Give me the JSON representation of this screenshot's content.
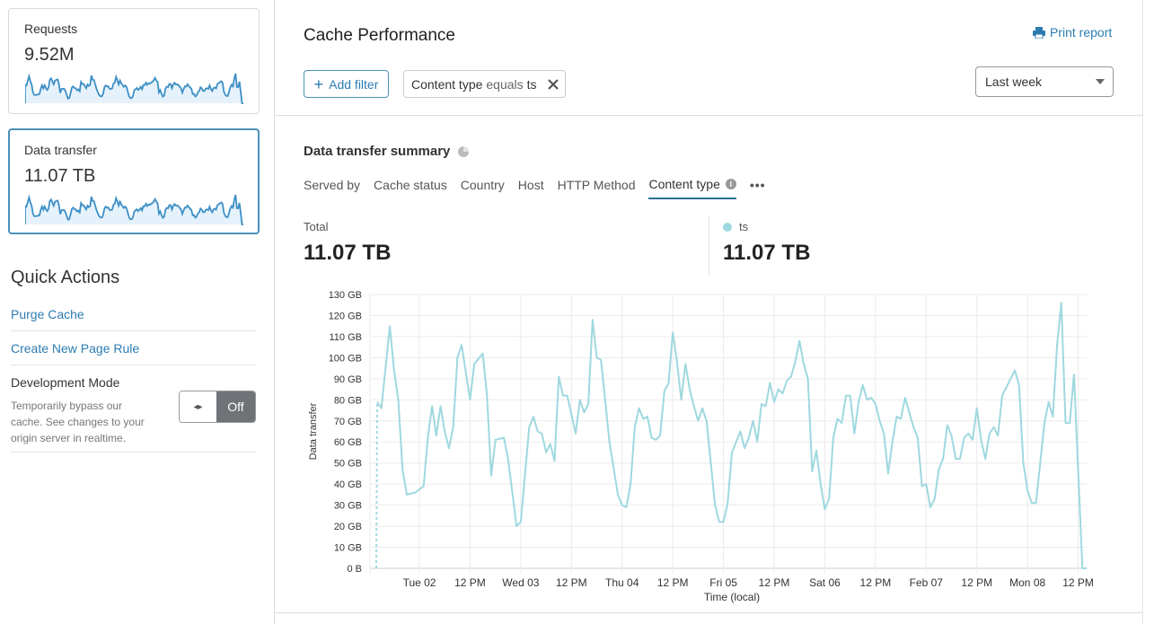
{
  "sidebar": {
    "cards": [
      {
        "label": "Requests",
        "value": "9.52M",
        "selected": false
      },
      {
        "label": "Data transfer",
        "value": "11.07 TB",
        "selected": true
      }
    ],
    "quick_actions": {
      "title": "Quick Actions",
      "links": [
        "Purge Cache",
        "Create New Page Rule"
      ],
      "dev_mode": {
        "title": "Development Mode",
        "description": "Temporarily bypass our cache. See changes to your origin server in realtime.",
        "toggle_icon": "◂▸",
        "state": "Off"
      }
    }
  },
  "header": {
    "title": "Cache Performance",
    "print_label": "Print report",
    "add_filter_label": "Add filter",
    "filter_chip": {
      "field": "Content type",
      "operator": "equals",
      "value": "ts"
    },
    "time_range": "Last week"
  },
  "summary": {
    "title": "Data transfer summary",
    "tabs": [
      "Served by",
      "Cache status",
      "Country",
      "Host",
      "HTTP Method",
      "Content type"
    ],
    "active_tab": "Content type",
    "more_label": "•••",
    "total_label": "Total",
    "total_value": "11.07 TB",
    "series_label": "ts",
    "series_value": "11.07 TB",
    "series_color": "#9fd8df"
  },
  "colors": {
    "accent": "#2c7cb0",
    "sparkline": "#3d8fc6",
    "sparkline_fill": "#e6f2fb"
  },
  "chart_data": {
    "type": "line",
    "ylabel": "Data transfer",
    "xlabel": "Time (local)",
    "ylim": [
      0,
      130
    ],
    "y_ticks": [
      "0 B",
      "10 GB",
      "20 GB",
      "30 GB",
      "40 GB",
      "50 GB",
      "60 GB",
      "70 GB",
      "80 GB",
      "90 GB",
      "100 GB",
      "110 GB",
      "120 GB",
      "130 GB"
    ],
    "x_range": [
      "Feb 01 14:00",
      "Feb 08 14:00"
    ],
    "x_ticks": [
      {
        "t": "Feb 02 00:00",
        "label": "Tue 02"
      },
      {
        "t": "Feb 02 12:00",
        "label": "12 PM"
      },
      {
        "t": "Feb 03 00:00",
        "label": "Wed 03"
      },
      {
        "t": "Feb 03 12:00",
        "label": "12 PM"
      },
      {
        "t": "Feb 04 00:00",
        "label": "Thu 04"
      },
      {
        "t": "Feb 04 12:00",
        "label": "12 PM"
      },
      {
        "t": "Feb 05 00:00",
        "label": "Fri 05"
      },
      {
        "t": "Feb 05 12:00",
        "label": "12 PM"
      },
      {
        "t": "Feb 06 00:00",
        "label": "Sat 06"
      },
      {
        "t": "Feb 06 12:00",
        "label": "12 PM"
      },
      {
        "t": "Feb 07 00:00",
        "label": "Feb 07"
      },
      {
        "t": "Feb 07 12:00",
        "label": "12 PM"
      },
      {
        "t": "Feb 08 00:00",
        "label": "Mon 08"
      },
      {
        "t": "Feb 08 12:00",
        "label": "12 PM"
      }
    ],
    "grid": true,
    "legend": "none",
    "series": [
      {
        "name": "ts",
        "unit": "GB",
        "points": [
          [
            "Feb 01 14:00",
            79
          ],
          [
            "Feb 01 15:00",
            76
          ],
          [
            "Feb 01 17:00",
            115
          ],
          [
            "Feb 01 18:00",
            94
          ],
          [
            "Feb 01 19:00",
            80
          ],
          [
            "Feb 01 20:00",
            47
          ],
          [
            "Feb 01 21:00",
            35
          ],
          [
            "Feb 01 23:00",
            36
          ],
          [
            "Feb 02 01:00",
            39
          ],
          [
            "Feb 02 02:00",
            62
          ],
          [
            "Feb 02 03:00",
            77
          ],
          [
            "Feb 02 04:00",
            63
          ],
          [
            "Feb 02 05:00",
            77
          ],
          [
            "Feb 02 06:00",
            65
          ],
          [
            "Feb 02 07:00",
            57
          ],
          [
            "Feb 02 08:00",
            67
          ],
          [
            "Feb 02 09:00",
            100
          ],
          [
            "Feb 02 10:00",
            106
          ],
          [
            "Feb 02 12:00",
            80
          ],
          [
            "Feb 02 13:00",
            97
          ],
          [
            "Feb 02 15:00",
            102
          ],
          [
            "Feb 02 16:00",
            82
          ],
          [
            "Feb 02 17:00",
            44
          ],
          [
            "Feb 02 18:00",
            61
          ],
          [
            "Feb 02 20:00",
            62
          ],
          [
            "Feb 02 21:00",
            52
          ],
          [
            "Feb 02 23:00",
            20
          ],
          [
            "Feb 03 00:00",
            22
          ],
          [
            "Feb 03 02:00",
            67
          ],
          [
            "Feb 03 03:00",
            72
          ],
          [
            "Feb 03 04:00",
            65
          ],
          [
            "Feb 03 05:00",
            64
          ],
          [
            "Feb 03 06:00",
            55
          ],
          [
            "Feb 03 07:00",
            59
          ],
          [
            "Feb 03 08:00",
            51
          ],
          [
            "Feb 03 09:00",
            91
          ],
          [
            "Feb 03 10:00",
            82
          ],
          [
            "Feb 03 11:00",
            82
          ],
          [
            "Feb 03 13:00",
            64
          ],
          [
            "Feb 03 14:00",
            80
          ],
          [
            "Feb 03 15:00",
            74
          ],
          [
            "Feb 03 16:00",
            78
          ],
          [
            "Feb 03 17:00",
            118
          ],
          [
            "Feb 03 18:00",
            100
          ],
          [
            "Feb 03 19:00",
            99
          ],
          [
            "Feb 03 21:00",
            60
          ],
          [
            "Feb 03 23:00",
            35
          ],
          [
            "Feb 04 00:00",
            30
          ],
          [
            "Feb 04 01:00",
            29
          ],
          [
            "Feb 04 02:00",
            40
          ],
          [
            "Feb 04 03:00",
            67
          ],
          [
            "Feb 04 04:00",
            76
          ],
          [
            "Feb 04 05:00",
            71
          ],
          [
            "Feb 04 06:00",
            72
          ],
          [
            "Feb 04 07:00",
            62
          ],
          [
            "Feb 04 08:00",
            61
          ],
          [
            "Feb 04 09:00",
            63
          ],
          [
            "Feb 04 10:00",
            84
          ],
          [
            "Feb 04 11:00",
            88
          ],
          [
            "Feb 04 12:00",
            112
          ],
          [
            "Feb 04 13:00",
            98
          ],
          [
            "Feb 04 14:00",
            80
          ],
          [
            "Feb 04 15:00",
            97
          ],
          [
            "Feb 04 16:00",
            85
          ],
          [
            "Feb 04 17:00",
            77
          ],
          [
            "Feb 04 18:00",
            70
          ],
          [
            "Feb 04 19:00",
            76
          ],
          [
            "Feb 04 20:00",
            70
          ],
          [
            "Feb 04 21:00",
            50
          ],
          [
            "Feb 04 22:00",
            30
          ],
          [
            "Feb 04 23:00",
            22
          ],
          [
            "Feb 05 00:00",
            22
          ],
          [
            "Feb 05 01:00",
            31
          ],
          [
            "Feb 05 02:00",
            55
          ],
          [
            "Feb 05 04:00",
            65
          ],
          [
            "Feb 05 05:00",
            57
          ],
          [
            "Feb 05 06:00",
            62
          ],
          [
            "Feb 05 07:00",
            70
          ],
          [
            "Feb 05 08:00",
            60
          ],
          [
            "Feb 05 09:00",
            78
          ],
          [
            "Feb 05 10:00",
            77
          ],
          [
            "Feb 05 11:00",
            88
          ],
          [
            "Feb 05 12:00",
            79
          ],
          [
            "Feb 05 13:00",
            85
          ],
          [
            "Feb 05 14:00",
            83
          ],
          [
            "Feb 05 15:00",
            89
          ],
          [
            "Feb 05 16:00",
            91
          ],
          [
            "Feb 05 17:00",
            98
          ],
          [
            "Feb 05 18:00",
            108
          ],
          [
            "Feb 05 19:00",
            97
          ],
          [
            "Feb 05 20:00",
            90
          ],
          [
            "Feb 05 21:00",
            46
          ],
          [
            "Feb 05 22:00",
            56
          ],
          [
            "Feb 05 23:00",
            40
          ],
          [
            "Feb 06 00:00",
            28
          ],
          [
            "Feb 06 01:00",
            33
          ],
          [
            "Feb 06 02:00",
            62
          ],
          [
            "Feb 06 03:00",
            71
          ],
          [
            "Feb 06 04:00",
            69
          ],
          [
            "Feb 06 05:00",
            82
          ],
          [
            "Feb 06 06:00",
            82
          ],
          [
            "Feb 06 07:00",
            64
          ],
          [
            "Feb 06 08:00",
            79
          ],
          [
            "Feb 06 09:00",
            87
          ],
          [
            "Feb 06 10:00",
            80
          ],
          [
            "Feb 06 11:00",
            81
          ],
          [
            "Feb 06 12:00",
            78
          ],
          [
            "Feb 06 13:00",
            70
          ],
          [
            "Feb 06 14:00",
            64
          ],
          [
            "Feb 06 15:00",
            45
          ],
          [
            "Feb 06 16:00",
            60
          ],
          [
            "Feb 06 17:00",
            72
          ],
          [
            "Feb 06 18:00",
            71
          ],
          [
            "Feb 06 19:00",
            81
          ],
          [
            "Feb 06 20:00",
            74
          ],
          [
            "Feb 06 21:00",
            67
          ],
          [
            "Feb 06 22:00",
            62
          ],
          [
            "Feb 06 23:00",
            39
          ],
          [
            "Feb 07 00:00",
            40
          ],
          [
            "Feb 07 01:00",
            29
          ],
          [
            "Feb 07 02:00",
            33
          ],
          [
            "Feb 07 03:00",
            47
          ],
          [
            "Feb 07 04:00",
            52
          ],
          [
            "Feb 07 05:00",
            68
          ],
          [
            "Feb 07 06:00",
            63
          ],
          [
            "Feb 07 07:00",
            52
          ],
          [
            "Feb 07 08:00",
            52
          ],
          [
            "Feb 07 09:00",
            62
          ],
          [
            "Feb 07 10:00",
            64
          ],
          [
            "Feb 07 11:00",
            61
          ],
          [
            "Feb 07 12:00",
            76
          ],
          [
            "Feb 07 13:00",
            61
          ],
          [
            "Feb 07 14:00",
            52
          ],
          [
            "Feb 07 15:00",
            64
          ],
          [
            "Feb 07 16:00",
            67
          ],
          [
            "Feb 07 17:00",
            63
          ],
          [
            "Feb 07 18:00",
            82
          ],
          [
            "Feb 07 19:00",
            86
          ],
          [
            "Feb 07 20:00",
            90
          ],
          [
            "Feb 07 21:00",
            94
          ],
          [
            "Feb 07 22:00",
            87
          ],
          [
            "Feb 07 23:00",
            50
          ],
          [
            "Feb 08 00:00",
            37
          ],
          [
            "Feb 08 01:00",
            31
          ],
          [
            "Feb 08 02:00",
            31
          ],
          [
            "Feb 08 03:00",
            50
          ],
          [
            "Feb 08 04:00",
            69
          ],
          [
            "Feb 08 05:00",
            79
          ],
          [
            "Feb 08 06:00",
            72
          ],
          [
            "Feb 08 07:00",
            106
          ],
          [
            "Feb 08 08:00",
            126
          ],
          [
            "Feb 08 09:00",
            69
          ],
          [
            "Feb 08 10:00",
            69
          ],
          [
            "Feb 08 11:00",
            92
          ],
          [
            "Feb 08 13:00",
            0
          ],
          [
            "Feb 08 14:00",
            0
          ]
        ]
      }
    ]
  }
}
